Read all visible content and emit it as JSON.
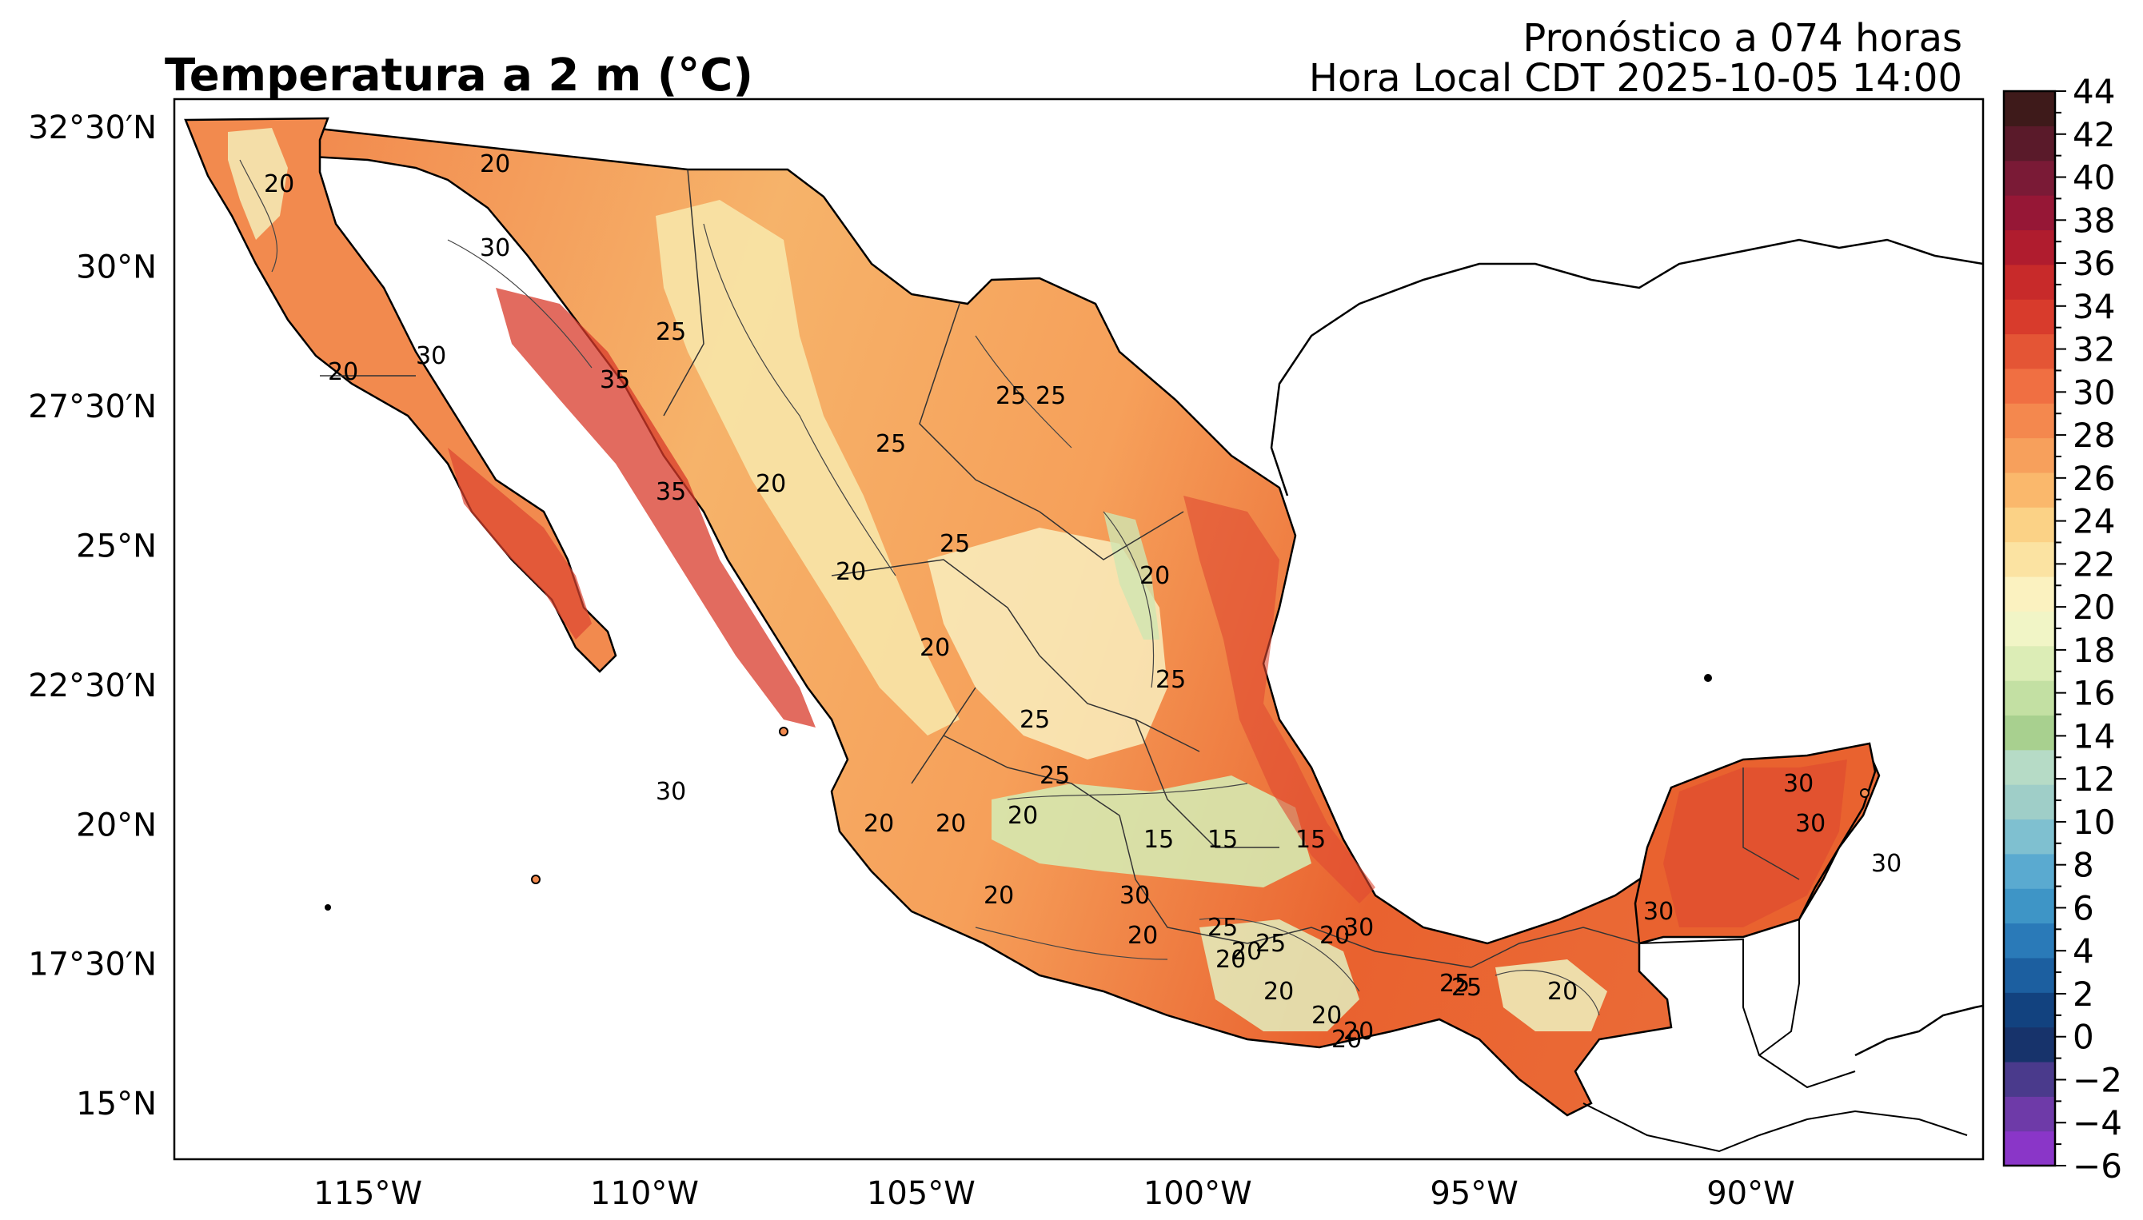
{
  "title": "Temperatura a 2 m (°C)",
  "forecast_line": "Pronóstico a 074 horas",
  "time_line": "Hora Local CDT 2025-10-05 14:00",
  "lat_labels": [
    "32°30′N",
    "30°N",
    "27°30′N",
    "25°N",
    "22°30′N",
    "20°N",
    "17°30′N",
    "15°N"
  ],
  "lat_values": [
    32.5,
    30,
    27.5,
    25,
    22.5,
    20,
    17.5,
    15
  ],
  "lon_labels": [
    "115°W",
    "110°W",
    "105°W",
    "100°W",
    "95°W",
    "90°W"
  ],
  "lon_values": [
    -115,
    -110,
    -105,
    -100,
    -95,
    -90
  ],
  "extent": {
    "lon_min": -118.5,
    "lon_max": -85.8,
    "lat_min": 14.0,
    "lat_max": 33.0
  },
  "colorbar": {
    "min": -6,
    "max": 44,
    "step": 2,
    "tick_labels": [
      "44",
      "42",
      "40",
      "38",
      "36",
      "34",
      "32",
      "30",
      "28",
      "26",
      "24",
      "22",
      "20",
      "18",
      "16",
      "14",
      "12",
      "10",
      "8",
      "6",
      "4",
      "2",
      "0",
      "−2",
      "−4",
      "−6"
    ],
    "colors": [
      "#8a36c8",
      "#6e3aa8",
      "#4a3a8c",
      "#17336b",
      "#12427f",
      "#1c5fa0",
      "#2a7ab8",
      "#3e95c6",
      "#5aaad0",
      "#7fc0d0",
      "#9fcec8",
      "#b6dbc6",
      "#a8d08f",
      "#c3e0a3",
      "#dcedb6",
      "#f1f5c6",
      "#fbf2c0",
      "#fbe3a2",
      "#fbd286",
      "#fab86c",
      "#f7a05c",
      "#f4884e",
      "#f06f42",
      "#e45535",
      "#d83b2c",
      "#c82a2a",
      "#b01c2e",
      "#961736",
      "#7a1a36",
      "#5a1a2a",
      "#3e1a1a"
    ]
  },
  "contour_labels": [
    "20",
    "30",
    "25",
    "30",
    "35",
    "20",
    "20",
    "35",
    "25",
    "25",
    "25",
    "20",
    "25",
    "20",
    "20",
    "20",
    "25",
    "20",
    "25",
    "25",
    "30",
    "30",
    "30",
    "25",
    "20",
    "20",
    "20",
    "20",
    "15",
    "15",
    "15",
    "20",
    "30",
    "20",
    "25",
    "20",
    "20",
    "20",
    "20",
    "30",
    "25",
    "30",
    "20",
    "30",
    "25",
    "20"
  ]
}
